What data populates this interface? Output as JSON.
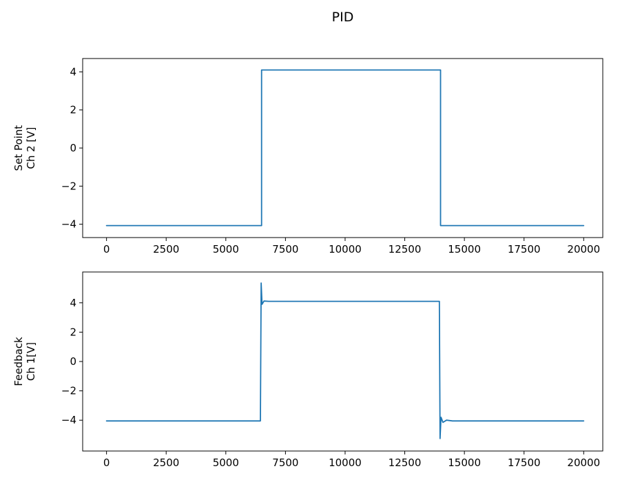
{
  "figure": {
    "title": "PID",
    "background": "#ffffff"
  },
  "chart_data": [
    {
      "type": "line",
      "title": "",
      "xlabel": "",
      "ylabel": "Set Point\nCh 2 [V]",
      "ylabel_lines": [
        "Set Point",
        "Ch 2 [V]"
      ],
      "x": [
        0,
        6500,
        6500,
        14000,
        14000,
        20000
      ],
      "y": [
        -4.07,
        -4.07,
        4.1,
        4.1,
        -4.07,
        -4.07
      ],
      "xlim": [
        -1000,
        20800
      ],
      "ylim": [
        -4.7,
        4.7
      ],
      "xticks": [
        0,
        2500,
        5000,
        7500,
        10000,
        12500,
        15000,
        17500,
        20000
      ],
      "yticks": [
        -4,
        -2,
        0,
        2,
        4
      ],
      "grid": false,
      "legend": null,
      "line_color": "#1f77b4"
    },
    {
      "type": "line",
      "title": "",
      "xlabel": "",
      "ylabel": "Feedback\nCh 1[V]",
      "ylabel_lines": [
        "Feedback",
        "Ch 1[V]"
      ],
      "x": [
        0,
        6450,
        6480,
        6520,
        6600,
        6800,
        13950,
        13980,
        14020,
        14100,
        14250,
        14500,
        20000
      ],
      "y": [
        -4.05,
        -4.05,
        5.35,
        3.9,
        4.12,
        4.1,
        4.1,
        -5.25,
        -3.8,
        -4.15,
        -4.0,
        -4.05,
        -4.05
      ],
      "xlim": [
        -1000,
        20800
      ],
      "ylim": [
        -6.1,
        6.1
      ],
      "xticks": [
        0,
        2500,
        5000,
        7500,
        10000,
        12500,
        15000,
        17500,
        20000
      ],
      "yticks": [
        -4,
        -2,
        0,
        2,
        4
      ],
      "grid": false,
      "legend": null,
      "line_color": "#1f77b4"
    }
  ]
}
